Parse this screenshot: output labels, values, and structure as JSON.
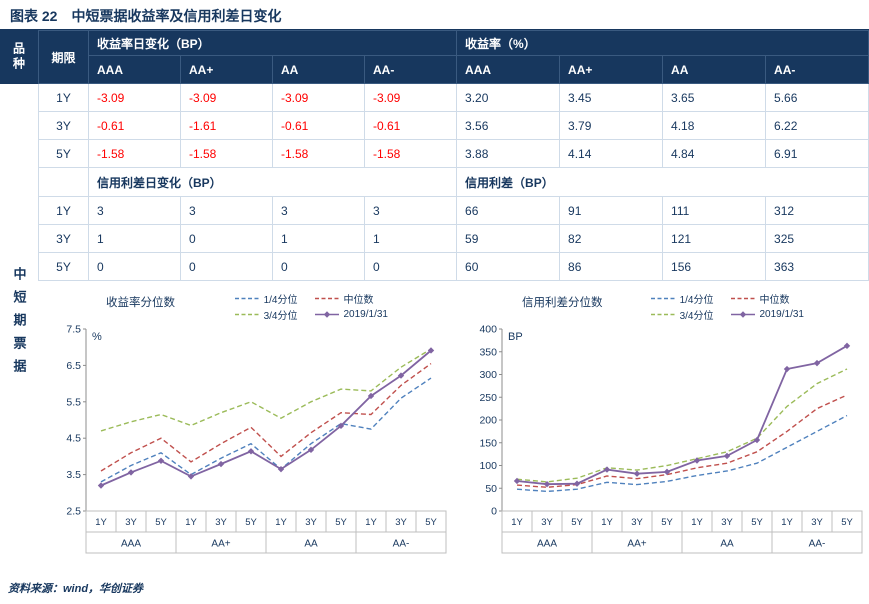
{
  "title": "图表 22　中短票据收益率及信用利差日变化",
  "source": "资料来源：wind，华创证券",
  "colors": {
    "header_bg": "#17375E",
    "accent_text": "#17375E",
    "negative": "#FF0000",
    "q1_line": "#4F81BD",
    "median_line": "#C0504D",
    "q3_line": "#9BBB59",
    "current_line": "#8064A2"
  },
  "table": {
    "variety_label": "品种",
    "variety_value": "中短期票据",
    "term_label": "期限",
    "ratings": [
      "AAA",
      "AA+",
      "AA",
      "AA-"
    ],
    "section1": {
      "left_header": "收益率日变化（BP）",
      "right_header": "收益率（%）",
      "rows": [
        {
          "term": "1Y",
          "left": [
            "-3.09",
            "-3.09",
            "-3.09",
            "-3.09"
          ],
          "right": [
            "3.20",
            "3.45",
            "3.65",
            "5.66"
          ]
        },
        {
          "term": "3Y",
          "left": [
            "-0.61",
            "-1.61",
            "-0.61",
            "-0.61"
          ],
          "right": [
            "3.56",
            "3.79",
            "4.18",
            "6.22"
          ]
        },
        {
          "term": "5Y",
          "left": [
            "-1.58",
            "-1.58",
            "-1.58",
            "-1.58"
          ],
          "right": [
            "3.88",
            "4.14",
            "4.84",
            "6.91"
          ]
        }
      ]
    },
    "section2": {
      "left_header": "信用利差日变化（BP）",
      "right_header": "信用利差（BP）",
      "rows": [
        {
          "term": "1Y",
          "left": [
            "3",
            "3",
            "3",
            "3"
          ],
          "right": [
            "66",
            "91",
            "111",
            "312"
          ]
        },
        {
          "term": "3Y",
          "left": [
            "1",
            "0",
            "1",
            "1"
          ],
          "right": [
            "59",
            "82",
            "121",
            "325"
          ]
        },
        {
          "term": "5Y",
          "left": [
            "0",
            "0",
            "0",
            "0"
          ],
          "right": [
            "60",
            "86",
            "156",
            "363"
          ]
        }
      ]
    }
  },
  "chart_data": [
    {
      "type": "line",
      "title": "收益率分位数",
      "unit": "%",
      "ylim": [
        2.5,
        7.5
      ],
      "yticks": [
        "2.5",
        "3.5",
        "4.5",
        "5.5",
        "6.5",
        "7.5"
      ],
      "x_terms": [
        "1Y",
        "3Y",
        "5Y",
        "1Y",
        "3Y",
        "5Y",
        "1Y",
        "3Y",
        "5Y",
        "1Y",
        "3Y",
        "5Y"
      ],
      "x_groups": [
        "AAA",
        "AA+",
        "AA",
        "AA-"
      ],
      "legend_position": "top-right",
      "grid": false,
      "series": [
        {
          "name": "1/4分位",
          "style": "dashed",
          "color": "#4F81BD",
          "values": [
            3.3,
            3.75,
            4.1,
            3.5,
            3.95,
            4.35,
            3.65,
            4.35,
            4.9,
            4.75,
            5.6,
            6.15
          ]
        },
        {
          "name": "中位数",
          "style": "dashed",
          "color": "#C0504D",
          "values": [
            3.6,
            4.1,
            4.5,
            3.85,
            4.35,
            4.8,
            4.0,
            4.65,
            5.2,
            5.15,
            5.95,
            6.55
          ]
        },
        {
          "name": "3/4分位",
          "style": "dashed",
          "color": "#9BBB59",
          "values": [
            4.7,
            4.95,
            5.15,
            4.85,
            5.2,
            5.5,
            5.05,
            5.5,
            5.85,
            5.8,
            6.45,
            6.95
          ]
        },
        {
          "name": "2019/1/31",
          "style": "solid-marker",
          "color": "#8064A2",
          "values": [
            3.2,
            3.56,
            3.88,
            3.45,
            3.79,
            4.14,
            3.65,
            4.18,
            4.84,
            5.66,
            6.22,
            6.91
          ]
        }
      ]
    },
    {
      "type": "line",
      "title": "信用利差分位数",
      "unit": "BP",
      "ylim": [
        0,
        400
      ],
      "yticks": [
        "0",
        "50",
        "100",
        "150",
        "200",
        "250",
        "300",
        "350",
        "400"
      ],
      "x_terms": [
        "1Y",
        "3Y",
        "5Y",
        "1Y",
        "3Y",
        "5Y",
        "1Y",
        "3Y",
        "5Y",
        "1Y",
        "3Y",
        "5Y"
      ],
      "x_groups": [
        "AAA",
        "AA+",
        "AA",
        "AA-"
      ],
      "legend_position": "top-right",
      "grid": false,
      "series": [
        {
          "name": "1/4分位",
          "style": "dashed",
          "color": "#4F81BD",
          "values": [
            48,
            43,
            48,
            63,
            58,
            65,
            78,
            88,
            105,
            140,
            175,
            210
          ]
        },
        {
          "name": "中位数",
          "style": "dashed",
          "color": "#C0504D",
          "values": [
            57,
            52,
            58,
            77,
            71,
            80,
            95,
            105,
            130,
            175,
            225,
            255
          ]
        },
        {
          "name": "3/4分位",
          "style": "dashed",
          "color": "#9BBB59",
          "values": [
            70,
            64,
            72,
            95,
            90,
            100,
            115,
            130,
            160,
            230,
            280,
            312
          ]
        },
        {
          "name": "2019/1/31",
          "style": "solid-marker",
          "color": "#8064A2",
          "values": [
            66,
            59,
            60,
            91,
            82,
            86,
            111,
            121,
            156,
            312,
            325,
            363
          ]
        }
      ]
    }
  ]
}
